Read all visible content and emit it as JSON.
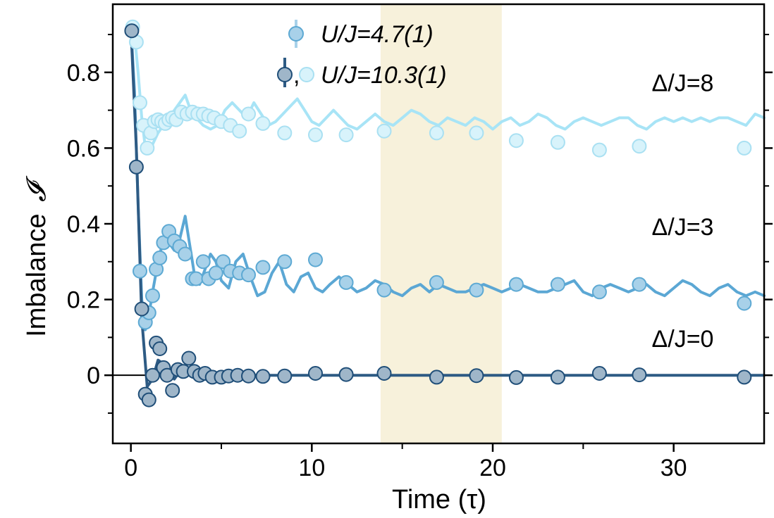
{
  "chart_data": {
    "type": "scatter",
    "xlabel": "Time (τ)",
    "ylabel": "Imbalance",
    "ylabel_symbol": "𝓘",
    "xlim": [
      -1,
      35
    ],
    "ylim": [
      -0.18,
      0.98
    ],
    "xticks": [
      0,
      10,
      20,
      30
    ],
    "xtick_labels": [
      "0",
      "10",
      "20",
      "30"
    ],
    "yticks": [
      0,
      0.2,
      0.4,
      0.6,
      0.8
    ],
    "ytick_labels": [
      "0",
      "0.2",
      "0.4",
      "0.6",
      "0.8"
    ],
    "grid": false,
    "shaded_region": {
      "x_from": 13.8,
      "x_to": 20.5,
      "color": "#f7f1db"
    },
    "zero_line": {
      "y": 0,
      "color": "#000000"
    },
    "legend": {
      "placement": "top-center",
      "entries": [
        {
          "label": "U/J=4.7(1)",
          "marker_colors": [
            "#a8d1e9"
          ]
        },
        {
          "label": "U/J=10.3(1)",
          "prefix": ",",
          "marker_colors": [
            "#9fb6c9",
            "#d8f3fb"
          ]
        }
      ]
    },
    "annotations": [
      {
        "text": "Δ/J=8",
        "x": 30.5,
        "y": 0.75
      },
      {
        "text": "Δ/J=3",
        "x": 30.5,
        "y": 0.37
      },
      {
        "text": "Δ/J=0",
        "x": 30.5,
        "y": 0.075
      }
    ],
    "series": [
      {
        "name": "Δ/J=8",
        "fill": "#d8f3fb",
        "stroke": "#a9e0f2",
        "line_color": "#a8e4f6",
        "x": [
          0.1,
          0.3,
          0.5,
          0.7,
          0.9,
          1.1,
          1.3,
          1.5,
          1.7,
          1.9,
          2.1,
          2.3,
          2.5,
          2.8,
          3.1,
          3.4,
          3.7,
          4.0,
          4.3,
          4.6,
          5.0,
          5.5,
          6.0,
          6.5,
          7.3,
          8.5,
          10.2,
          11.9,
          14.0,
          16.9,
          19.1,
          21.3,
          23.6,
          25.9,
          28.1,
          33.9
        ],
        "y": [
          0.92,
          0.88,
          0.72,
          0.66,
          0.6,
          0.64,
          0.67,
          0.675,
          0.67,
          0.665,
          0.675,
          0.68,
          0.675,
          0.695,
          0.69,
          0.695,
          0.69,
          0.69,
          0.685,
          0.68,
          0.67,
          0.66,
          0.645,
          0.69,
          0.665,
          0.64,
          0.635,
          0.635,
          0.645,
          0.64,
          0.64,
          0.62,
          0.615,
          0.595,
          0.605,
          0.6
        ],
        "line_x": [
          0,
          0.2,
          0.4,
          0.6,
          0.8,
          1.0,
          1.2,
          1.5,
          1.8,
          2.1,
          2.4,
          2.7,
          3.0,
          3.3,
          3.6,
          4.0,
          4.4,
          4.8,
          5.2,
          5.6,
          6.0,
          6.4,
          6.8,
          7.2,
          7.6,
          8.0,
          8.4,
          8.8,
          9.2,
          9.6,
          10.0,
          10.4,
          10.8,
          11.2,
          11.6,
          12.0,
          12.5,
          13.0,
          13.5,
          14.0,
          14.5,
          15.0,
          15.5,
          16.0,
          16.5,
          17.0,
          17.5,
          18.0,
          18.5,
          19.0,
          19.5,
          20.0,
          20.5,
          21.0,
          21.5,
          22.0,
          22.5,
          23.0,
          23.5,
          24.0,
          24.5,
          25.0,
          25.5,
          26.0,
          26.5,
          27.0,
          27.5,
          28.0,
          28.5,
          29.0,
          29.5,
          30.0,
          30.5,
          31.0,
          31.5,
          32.0,
          32.5,
          33.0,
          33.5,
          34.0,
          34.5,
          35.0
        ],
        "line_y": [
          0.92,
          0.9,
          0.8,
          0.68,
          0.6,
          0.59,
          0.61,
          0.64,
          0.66,
          0.68,
          0.7,
          0.72,
          0.74,
          0.7,
          0.68,
          0.66,
          0.65,
          0.66,
          0.7,
          0.72,
          0.7,
          0.68,
          0.72,
          0.69,
          0.66,
          0.67,
          0.69,
          0.71,
          0.73,
          0.7,
          0.67,
          0.66,
          0.68,
          0.7,
          0.68,
          0.66,
          0.65,
          0.67,
          0.69,
          0.67,
          0.66,
          0.68,
          0.7,
          0.69,
          0.67,
          0.66,
          0.68,
          0.67,
          0.66,
          0.68,
          0.67,
          0.65,
          0.67,
          0.68,
          0.66,
          0.67,
          0.69,
          0.68,
          0.66,
          0.65,
          0.67,
          0.68,
          0.67,
          0.66,
          0.67,
          0.68,
          0.68,
          0.66,
          0.65,
          0.67,
          0.68,
          0.67,
          0.68,
          0.67,
          0.68,
          0.67,
          0.68,
          0.68,
          0.67,
          0.66,
          0.69,
          0.68
        ]
      },
      {
        "name": "Δ/J=3",
        "fill": "#a8d1e9",
        "stroke": "#5da9d3",
        "line_color": "#5ba7d4",
        "x": [
          0.5,
          0.8,
          1.0,
          1.2,
          1.4,
          1.6,
          1.8,
          2.1,
          2.4,
          2.7,
          3.0,
          3.4,
          3.6,
          4.0,
          4.3,
          4.7,
          5.1,
          5.5,
          6.0,
          6.5,
          7.3,
          8.5,
          10.2,
          11.9,
          14.0,
          16.9,
          19.1,
          21.3,
          23.6,
          25.9,
          28.1,
          33.9
        ],
        "y": [
          0.275,
          0.14,
          0.165,
          0.21,
          0.28,
          0.31,
          0.35,
          0.38,
          0.355,
          0.34,
          0.32,
          0.255,
          0.255,
          0.3,
          0.255,
          0.27,
          0.3,
          0.275,
          0.27,
          0.265,
          0.285,
          0.3,
          0.305,
          0.245,
          0.225,
          0.245,
          0.225,
          0.24,
          0.24,
          0.22,
          0.24,
          0.19
        ],
        "line_x": [
          0,
          0.2,
          0.4,
          0.6,
          0.8,
          1.0,
          1.2,
          1.5,
          1.8,
          2.1,
          2.4,
          2.7,
          3.0,
          3.2,
          3.5,
          3.8,
          4.1,
          4.4,
          4.7,
          5.0,
          5.4,
          5.8,
          6.2,
          6.6,
          7.0,
          7.4,
          7.8,
          8.2,
          8.6,
          9.0,
          9.4,
          9.8,
          10.2,
          10.6,
          11.0,
          11.5,
          12.0,
          12.5,
          13.0,
          13.5,
          14.0,
          14.5,
          15.0,
          15.5,
          16.0,
          16.5,
          17.0,
          17.5,
          18.0,
          18.5,
          19.0,
          19.5,
          20.0,
          20.5,
          21.0,
          21.5,
          22.0,
          22.5,
          23.0,
          23.5,
          24.0,
          24.5,
          25.0,
          25.5,
          26.0,
          26.5,
          27.0,
          27.5,
          28.0,
          28.5,
          29.0,
          29.5,
          30.0,
          30.5,
          31.0,
          31.5,
          32.0,
          32.5,
          33.0,
          33.5,
          34.0,
          34.5,
          35.0
        ],
        "line_y": [
          0.92,
          0.75,
          0.45,
          0.2,
          0.12,
          0.16,
          0.22,
          0.3,
          0.36,
          0.35,
          0.33,
          0.36,
          0.42,
          0.36,
          0.27,
          0.24,
          0.28,
          0.32,
          0.3,
          0.25,
          0.23,
          0.3,
          0.32,
          0.26,
          0.21,
          0.22,
          0.27,
          0.3,
          0.24,
          0.22,
          0.26,
          0.27,
          0.23,
          0.22,
          0.24,
          0.26,
          0.24,
          0.22,
          0.23,
          0.25,
          0.24,
          0.22,
          0.21,
          0.23,
          0.24,
          0.22,
          0.24,
          0.23,
          0.22,
          0.22,
          0.23,
          0.24,
          0.23,
          0.22,
          0.23,
          0.24,
          0.23,
          0.22,
          0.22,
          0.23,
          0.24,
          0.25,
          0.22,
          0.21,
          0.23,
          0.24,
          0.23,
          0.22,
          0.23,
          0.24,
          0.22,
          0.21,
          0.23,
          0.25,
          0.24,
          0.22,
          0.21,
          0.23,
          0.24,
          0.22,
          0.21,
          0.22,
          0.21
        ]
      },
      {
        "name": "Δ/J=0",
        "fill": "#9fb6c9",
        "stroke": "#1f4e78",
        "line_color": "#2e5b84",
        "x": [
          0.05,
          0.3,
          0.6,
          0.8,
          1.0,
          1.2,
          1.4,
          1.6,
          1.8,
          2.0,
          2.3,
          2.6,
          2.9,
          3.2,
          3.5,
          3.8,
          4.1,
          4.5,
          5.0,
          5.4,
          5.9,
          6.5,
          7.3,
          8.5,
          10.2,
          11.9,
          14.0,
          16.9,
          19.1,
          21.3,
          23.6,
          25.9,
          28.1,
          33.9
        ],
        "y": [
          0.91,
          0.55,
          0.175,
          -0.05,
          -0.065,
          0.0,
          0.085,
          0.07,
          0.02,
          0.0,
          -0.04,
          0.015,
          0.01,
          0.045,
          0.01,
          0.0,
          0.005,
          -0.005,
          -0.005,
          -0.002,
          0.0,
          -0.002,
          -0.003,
          -0.002,
          0.005,
          0.002,
          0.005,
          -0.005,
          -0.001,
          -0.006,
          -0.005,
          0.005,
          0.001,
          -0.005
        ],
        "line_x": [
          0,
          0.3,
          0.6,
          0.9,
          1.2,
          1.5,
          1.8,
          2.1,
          2.4,
          2.7,
          3.0,
          3.5,
          4.0,
          5.0,
          6.0,
          8.0,
          10.0,
          15.0,
          20.0,
          25.0,
          30.0,
          35.0
        ],
        "line_y": [
          0.92,
          0.6,
          0.15,
          -0.03,
          -0.01,
          0.04,
          0.03,
          0.01,
          -0.01,
          0.01,
          0.005,
          0.0,
          0.002,
          0.0,
          0.0,
          0.0,
          0.0,
          0.0,
          0.0,
          0.0,
          0.0,
          0.0
        ]
      }
    ]
  }
}
